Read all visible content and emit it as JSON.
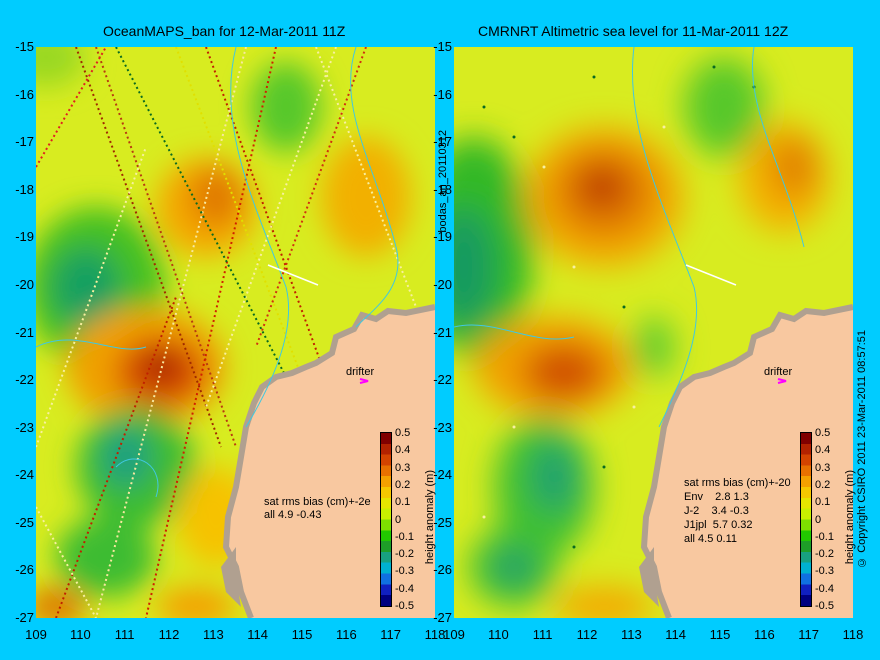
{
  "left_panel": {
    "title": "OceanMAPS_ban for 12-Mar-2011 11Z",
    "stats": "sat rms bias (cm)+-2e\nall 4.9 -0.43",
    "drifter_label": "drifter"
  },
  "right_panel": {
    "title": "CMRNRT Altimetric sea level  for 11-Mar-2011 12Z",
    "stats": "sat rms bias (cm)+-20\nEnv    2.8 1.3\nJ-2    3.4 -0.3\nJ1jpl  5.7 0.32\nall 4.5 0.11",
    "drifter_label": "drifter"
  },
  "y_ticks": [
    "-15",
    "-16",
    "-17",
    "-18",
    "-19",
    "-20",
    "-21",
    "-22",
    "-23",
    "-24",
    "-25",
    "-26",
    "-27"
  ],
  "x_ticks": [
    "109",
    "110",
    "111",
    "112",
    "113",
    "114",
    "115",
    "116",
    "117",
    "118"
  ],
  "colorbar": {
    "label": "height anomaly (m)",
    "ticks": [
      "0.5",
      "0.4",
      "0.3",
      "0.2",
      "0.1",
      "0",
      "-0.1",
      "-0.2",
      "-0.3",
      "-0.4",
      "-0.5"
    ],
    "colors": [
      "#800000",
      "#b22200",
      "#d44400",
      "#e87000",
      "#f4a000",
      "#f6c800",
      "#e6e600",
      "#c8f000",
      "#7ee000",
      "#22c800",
      "#1e9e28",
      "#18a080",
      "#00b0d0",
      "#1070e0",
      "#1020c0",
      "#000080"
    ]
  },
  "side_labels": {
    "bodas": "bodas_an_20110312",
    "copyright": "© Copyright CSIRO 2011   23-Mar-2011 08:57:51"
  },
  "colors": {
    "background": "#00ccff",
    "land": "#f8c8a0",
    "coast_shelf": "#b0a090",
    "sea_base": "#d8ec20",
    "drifter_arrow": "#ff00ff"
  }
}
